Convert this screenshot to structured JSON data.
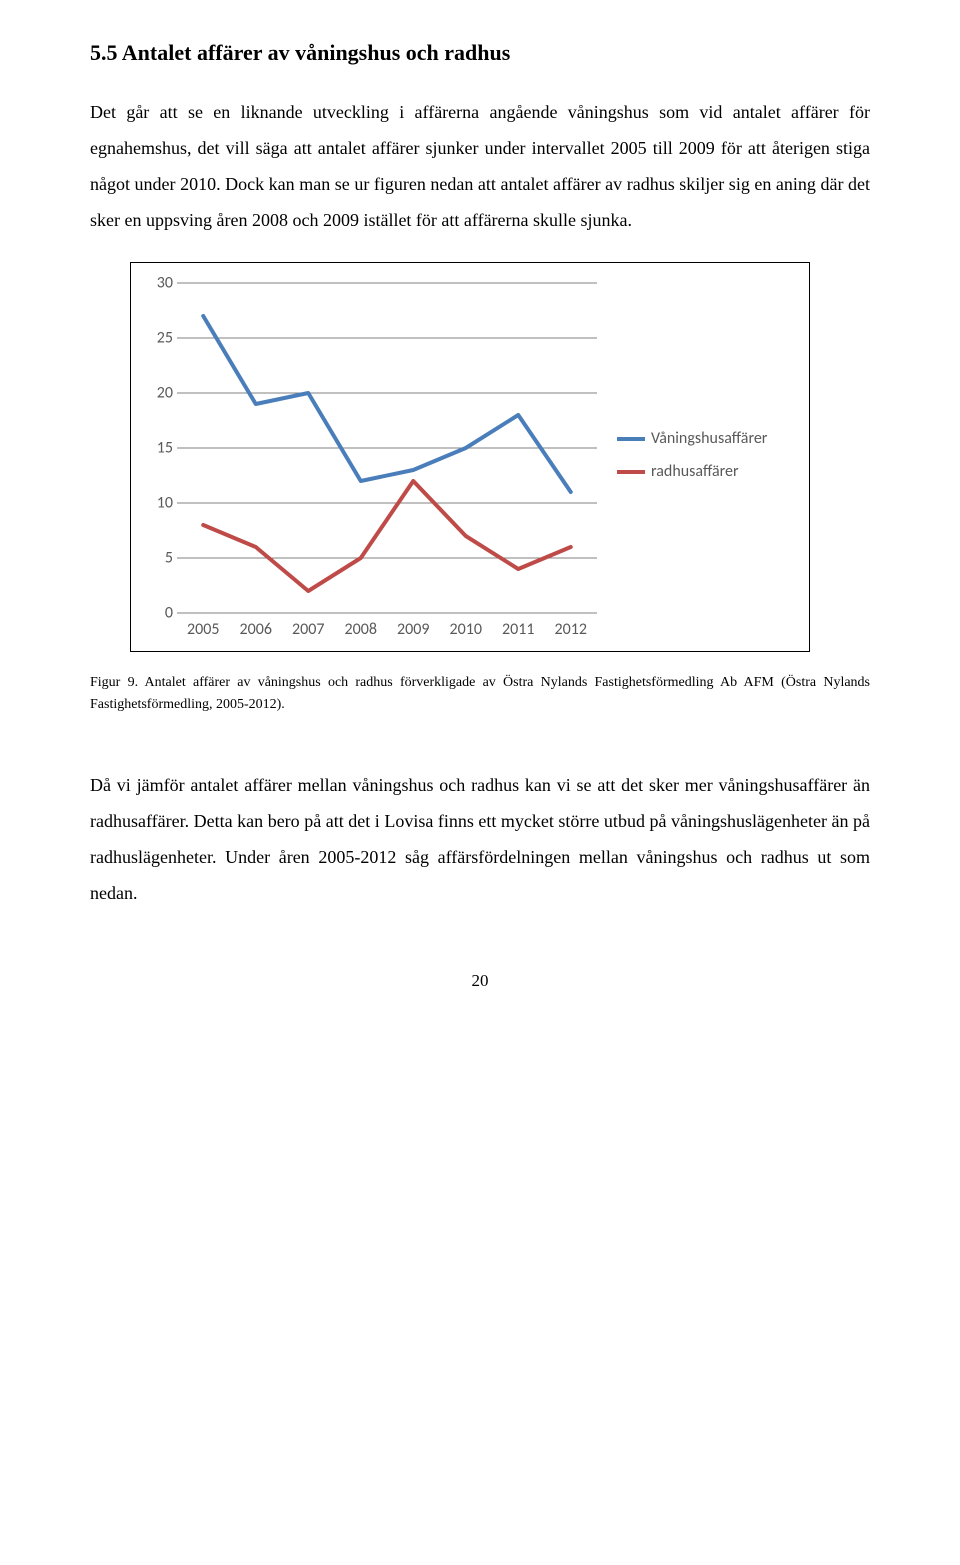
{
  "heading": "5.5 Antalet affärer av våningshus och radhus",
  "para1": "Det går att se en liknande utveckling i affärerna angående våningshus som vid antalet affärer för egnahemshus, det vill säga att antalet affärer sjunker under intervallet 2005 till 2009 för att återigen stiga något under 2010. Dock kan man se ur figuren nedan att antalet affärer av radhus skiljer sig en aning där det sker en uppsving åren 2008 och 2009 istället för att affärerna skulle sjunka.",
  "caption": "Figur 9. Antalet affärer av våningshus och radhus förverkligade av Östra Nylands Fastighetsförmedling Ab AFM (Östra Nylands Fastighetsförmedling, 2005-2012).",
  "para2": "Då vi jämför antalet affärer mellan våningshus och radhus kan vi se att det sker mer våningshusaffärer än radhusaffärer. Detta kan bero på att det i Lovisa finns ett mycket större utbud på våningshuslägenheter än på radhuslägenheter. Under åren 2005-2012 såg affärsfördelningen mellan våningshus och radhus ut som nedan.",
  "page_number": "20",
  "chart": {
    "type": "line",
    "categories": [
      "2005",
      "2006",
      "2007",
      "2008",
      "2009",
      "2010",
      "2011",
      "2012"
    ],
    "series": [
      {
        "name": "Våningshusaffärer",
        "color": "#4a7ebb",
        "values": [
          27,
          19,
          20,
          12,
          13,
          15,
          18,
          11
        ]
      },
      {
        "name": "radhusaffärer",
        "color": "#be4b48",
        "values": [
          8,
          6,
          2,
          5,
          12,
          7,
          4,
          6
        ]
      }
    ],
    "y_ticks": [
      0,
      5,
      10,
      15,
      20,
      25,
      30
    ],
    "ylim": [
      0,
      30
    ],
    "grid_color": "#808080",
    "background_color": "#ffffff",
    "tick_font": "Calibri",
    "tick_fontsize": 16,
    "tick_color": "#595959",
    "line_width": 4
  }
}
